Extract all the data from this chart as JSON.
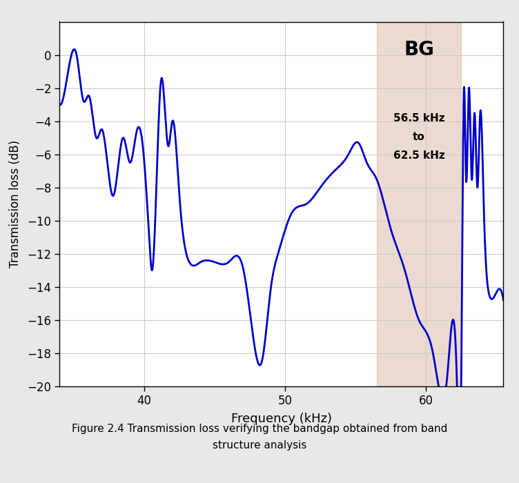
{
  "title": "",
  "xlabel": "Frequency (kHz)",
  "ylabel": "Transmission loss (dB)",
  "xlim": [
    34.0,
    65.5
  ],
  "ylim": [
    -20,
    2
  ],
  "yticks": [
    0,
    -2,
    -4,
    -6,
    -8,
    -10,
    -12,
    -14,
    -16,
    -18,
    -20
  ],
  "xticks": [
    40,
    50,
    60
  ],
  "bg_start": 56.5,
  "bg_end": 62.5,
  "bg_color": "#c8967a",
  "bg_alpha": 0.35,
  "bg_label": "BG",
  "bg_text": "56.5 kHz\nto\n62.5 kHz",
  "line_color": "#0000cc",
  "line_width": 2.0,
  "figure_bg": "#e8e8e8",
  "axes_bg": "#ffffff",
  "caption": "Figure 2.4 Transmission loss verifying the bandgap obtained from band\nstructure analysis"
}
